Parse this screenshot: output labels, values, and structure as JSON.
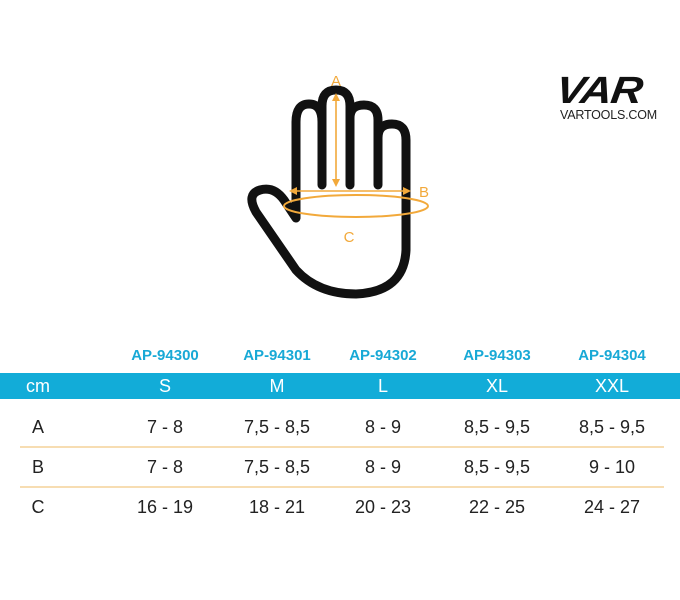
{
  "diagram": {
    "labels": {
      "a": "A",
      "b": "B",
      "c": "C"
    },
    "accent_color": "#f2a93b",
    "outline_color": "#111111"
  },
  "logo": {
    "mark": "VAR",
    "url": "VARTOOLS.COM"
  },
  "table": {
    "codes": [
      "AP-94300",
      "AP-94301",
      "AP-94302",
      "AP-94303",
      "AP-94304"
    ],
    "header": [
      "cm",
      "S",
      "M",
      "L",
      "XL",
      "XXL"
    ],
    "rows": [
      [
        "A",
        "7 - 8",
        "7,5 - 8,5",
        "8 - 9",
        "8,5 - 9,5",
        "8,5 - 9,5"
      ],
      [
        "B",
        "7 - 8",
        "7,5 - 8,5",
        "8 - 9",
        "8,5 - 9,5",
        "9 - 10"
      ],
      [
        "C",
        "16 - 19",
        "18 - 21",
        "20 - 23",
        "22 - 25",
        "24 - 27"
      ]
    ],
    "header_color": "#12acd8",
    "code_color": "#18a9d6",
    "divider_color": "#f7ddb2"
  }
}
